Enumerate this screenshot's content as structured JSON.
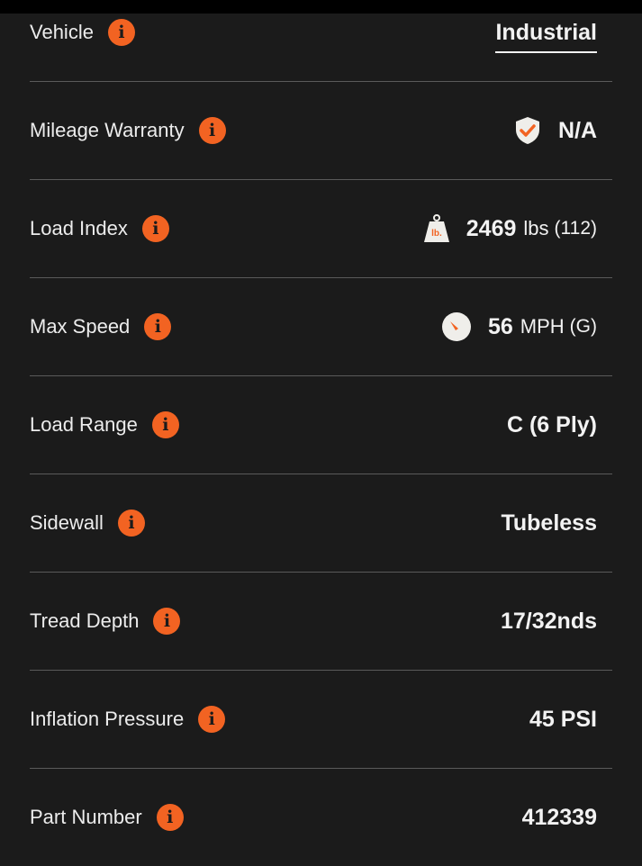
{
  "colors": {
    "accent": "#f26322",
    "background": "#1b1b1b"
  },
  "rows": [
    {
      "label": "Vehicle",
      "value": "Industrial"
    },
    {
      "label": "Mileage Warranty",
      "icon": "shield-check-icon",
      "value": "N/A"
    },
    {
      "label": "Load Index",
      "icon": "weight-icon",
      "icon_text": "lb.",
      "value": "2469",
      "unit": "lbs",
      "sub": "(112)"
    },
    {
      "label": "Max Speed",
      "icon": "speedometer-icon",
      "value": "56",
      "unit": "MPH",
      "sub": "(G)"
    },
    {
      "label": "Load Range",
      "value": "C (6 Ply)"
    },
    {
      "label": "Sidewall",
      "value": "Tubeless"
    },
    {
      "label": "Tread Depth",
      "value": "17/32nds"
    },
    {
      "label": "Inflation Pressure",
      "value": "45 PSI"
    },
    {
      "label": "Part Number",
      "value": "412339"
    }
  ],
  "info_glyph": "i"
}
